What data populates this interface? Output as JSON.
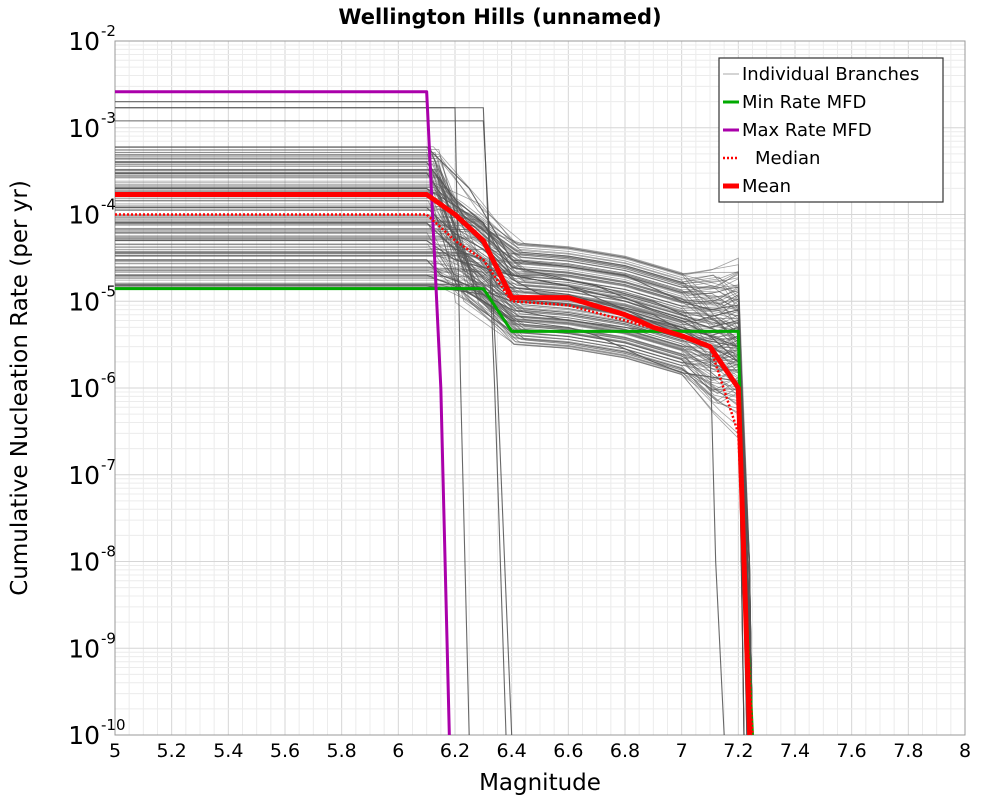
{
  "chart_data": {
    "type": "line",
    "title": "Wellington Hills (unnamed)",
    "xlabel": "Magnitude",
    "ylabel": "Cumulative Nucleation Rate (per yr)",
    "xlim": [
      5,
      8
    ],
    "ylim": [
      1e-10,
      0.01
    ],
    "yscale": "log",
    "grid": true,
    "legend_position": "top-right",
    "x_ticks": [
      "5",
      "5.2",
      "5.4",
      "5.6",
      "5.8",
      "6",
      "6.2",
      "6.4",
      "6.6",
      "6.8",
      "7",
      "7.2",
      "7.4",
      "7.6",
      "7.8",
      "8"
    ],
    "x_tick_values": [
      5,
      5.2,
      5.4,
      5.6,
      5.8,
      6,
      6.2,
      6.4,
      6.6,
      6.8,
      7,
      7.2,
      7.4,
      7.6,
      7.8,
      8
    ],
    "y_ticks": [
      {
        "base": "10",
        "exp": "-10",
        "value": 1e-10
      },
      {
        "base": "10",
        "exp": "-9",
        "value": 1e-09
      },
      {
        "base": "10",
        "exp": "-8",
        "value": 1e-08
      },
      {
        "base": "10",
        "exp": "-7",
        "value": 1e-07
      },
      {
        "base": "10",
        "exp": "-6",
        "value": 1e-06
      },
      {
        "base": "10",
        "exp": "-5",
        "value": 1e-05
      },
      {
        "base": "10",
        "exp": "-4",
        "value": 0.0001
      },
      {
        "base": "10",
        "exp": "-3",
        "value": 0.001
      },
      {
        "base": "10",
        "exp": "-2",
        "value": 0.01
      }
    ],
    "series": [
      {
        "name": "Individual Branches",
        "color": "#4d4d4d",
        "style": "thin-solid",
        "description_of_spread": "many logic-tree branches",
        "representative": [
          {
            "x": [
              5,
              6.1,
              6.15,
              6.4,
              6.6,
              6.8,
              7.0,
              7.1,
              7.2,
              7.22,
              7.25
            ],
            "y": [
              3e-05,
              3e-05,
              2e-05,
              1e-05,
              9e-06,
              7e-06,
              5e-06,
              4e-06,
              3e-06,
              1e-08,
              1e-10
            ]
          },
          {
            "x": [
              5,
              6.1,
              6.2,
              6.3,
              6.35,
              6.6,
              6.8,
              7.0,
              7.1,
              7.2,
              7.24
            ],
            "y": [
              8e-05,
              8e-05,
              4e-05,
              3e-05,
              1.5e-05,
              1.2e-05,
              8e-06,
              5e-06,
              4e-06,
              5e-06,
              1e-10
            ]
          },
          {
            "x": [
              5,
              6.1,
              6.3,
              6.4,
              6.6,
              6.8,
              7.0,
              7.1,
              7.2,
              7.23
            ],
            "y": [
              0.0002,
              0.0002,
              8e-05,
              2e-05,
              1.5e-05,
              1e-05,
              6e-06,
              4e-06,
              2e-06,
              1e-10
            ]
          },
          {
            "x": [
              5,
              6.1,
              6.2,
              6.3,
              6.4,
              6.7,
              6.9,
              7.1,
              7.2,
              7.24
            ],
            "y": [
              0.0004,
              0.0004,
              0.00015,
              8e-05,
              2.5e-05,
              1.5e-05,
              8e-06,
              5e-06,
              6e-06,
              1e-10
            ]
          },
          {
            "x": [
              5,
              6.1,
              6.3,
              6.4,
              6.6,
              6.8,
              7.0,
              7.2,
              7.22
            ],
            "y": [
              1.5e-05,
              1.5e-05,
              1.2e-05,
              8e-06,
              6e-06,
              5e-06,
              4e-06,
              3e-06,
              1e-10
            ]
          },
          {
            "x": [
              5,
              6.1,
              6.2,
              6.4,
              6.5,
              6.7,
              6.9,
              7.05,
              7.2,
              7.25
            ],
            "y": [
              5e-05,
              5e-05,
              3e-05,
              2e-05,
              2e-05,
              1.5e-05,
              1e-05,
              6e-06,
              8e-06,
              1e-10
            ]
          },
          {
            "x": [
              5,
              6.1,
              6.2,
              6.3,
              6.4,
              6.5,
              6.7,
              6.9,
              7.2,
              7.22
            ],
            "y": [
              0.00012,
              0.00012,
              6e-05,
              4e-05,
              1.8e-05,
              1.2e-05,
              1e-05,
              7e-06,
              2e-06,
              1e-10
            ]
          },
          {
            "x": [
              5,
              6.1,
              6.25,
              6.4,
              6.6,
              6.8,
              7.0,
              7.1,
              7.2,
              7.23
            ],
            "y": [
              0.0006,
              0.0006,
              0.0002,
              3e-05,
              2.5e-05,
              2e-05,
              1e-05,
              8e-06,
              9e-06,
              1e-10
            ]
          },
          {
            "x": [
              5,
              6.1,
              6.2,
              6.3,
              6.4,
              6.6,
              6.7,
              6.9,
              7.0,
              7.2,
              7.22
            ],
            "y": [
              2e-05,
              2e-05,
              1.5e-05,
              1e-05,
              6e-06,
              5e-06,
              4e-06,
              2e-06,
              1.5e-06,
              1.2e-06,
              1e-10
            ]
          },
          {
            "x": [
              5,
              6.1,
              6.2,
              6.4,
              6.6,
              6.8,
              7.0,
              7.1,
              7.12,
              7.15
            ],
            "y": [
              0.0003,
              0.0003,
              0.0001,
              2e-05,
              1.5e-05,
              8e-06,
              4e-06,
              3e-06,
              1e-08,
              1e-10
            ]
          },
          {
            "x": [
              5,
              6.1,
              6.15,
              6.18
            ],
            "y": [
              0.002,
              0.002,
              1e-06,
              1e-10
            ]
          },
          {
            "x": [
              5,
              6.1,
              6.2,
              6.22,
              6.25
            ],
            "y": [
              0.0017,
              0.0017,
              0.0017,
              1e-06,
              1e-10
            ]
          },
          {
            "x": [
              5,
              6.3,
              6.34,
              6.38
            ],
            "y": [
              0.0017,
              0.0017,
              1e-06,
              1e-10
            ]
          },
          {
            "x": [
              5,
              6.3,
              6.35,
              6.4
            ],
            "y": [
              0.0012,
              0.0012,
              1e-06,
              1e-10
            ]
          }
        ]
      },
      {
        "name": "Min Rate MFD",
        "color": "#00aa00",
        "style": "solid",
        "x": [
          5,
          6.3,
          6.4,
          7.2,
          7.22,
          7.25
        ],
        "y": [
          1.4e-05,
          1.4e-05,
          4.5e-06,
          4.5e-06,
          1e-08,
          1e-10
        ]
      },
      {
        "name": "Max Rate MFD",
        "color": "#aa00aa",
        "style": "solid",
        "x": [
          5,
          6.1,
          6.15,
          6.18
        ],
        "y": [
          0.0026,
          0.0026,
          1e-06,
          1e-10
        ]
      },
      {
        "name": "Median",
        "color": "#ff0000",
        "style": "dotted",
        "x": [
          5,
          6.1,
          6.2,
          6.3,
          6.4,
          6.6,
          6.8,
          7.0,
          7.1,
          7.2,
          7.22,
          7.25
        ],
        "y": [
          0.0001,
          0.0001,
          5e-05,
          3e-05,
          1e-05,
          9e-06,
          6e-06,
          4e-06,
          3e-06,
          3e-07,
          1e-08,
          1e-10
        ]
      },
      {
        "name": "Mean",
        "color": "#ff0000",
        "style": "thick-solid",
        "x": [
          5,
          6.1,
          6.2,
          6.3,
          6.4,
          6.6,
          6.8,
          6.9,
          7.0,
          7.1,
          7.2,
          7.22,
          7.24
        ],
        "y": [
          0.00017,
          0.00017,
          0.0001,
          5e-05,
          1.1e-05,
          1.1e-05,
          7e-06,
          5e-06,
          4e-06,
          3e-06,
          1e-06,
          1e-08,
          1e-10
        ]
      }
    ]
  }
}
